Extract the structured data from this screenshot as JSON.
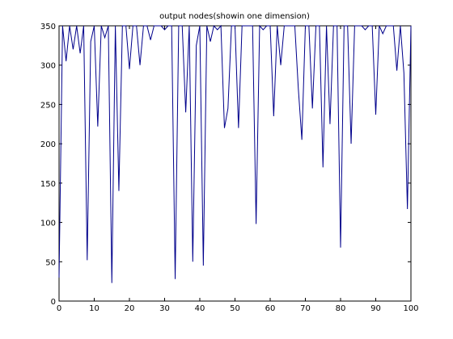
{
  "chart_data": {
    "type": "line",
    "title": "output nodes(showin one dimension)",
    "xlabel": "",
    "ylabel": "",
    "xlim": [
      0,
      100
    ],
    "ylim": [
      0,
      350
    ],
    "grid": false,
    "xticks": [
      "0",
      "10",
      "20",
      "30",
      "40",
      "50",
      "60",
      "70",
      "80",
      "90",
      "100"
    ],
    "yticks": [
      "0",
      "50",
      "100",
      "150",
      "200",
      "250",
      "300",
      "350"
    ],
    "line_color": "#00008B",
    "series": [
      {
        "x": [
          0,
          1,
          2,
          3,
          4,
          5,
          6,
          7,
          8,
          9,
          10,
          11,
          12,
          13,
          14,
          15,
          16,
          17,
          18,
          19,
          20,
          21,
          22,
          23,
          24,
          25,
          26,
          27,
          28,
          29,
          30,
          31,
          32,
          33,
          34,
          35,
          36,
          37,
          38,
          39,
          40,
          41,
          42,
          43,
          44,
          45,
          46,
          47,
          48,
          49,
          50,
          51,
          52,
          53,
          54,
          55,
          56,
          57,
          58,
          59,
          60,
          61,
          62,
          63,
          64,
          65,
          66,
          67,
          68,
          69,
          70,
          71,
          72,
          73,
          74,
          75,
          76,
          77,
          78,
          79,
          80,
          81,
          82,
          83,
          84,
          85,
          86,
          87,
          88,
          89,
          90,
          91,
          92,
          93,
          94,
          95,
          96,
          97,
          98,
          99,
          100
        ],
        "y": [
          30,
          350,
          305,
          350,
          320,
          350,
          315,
          350,
          52,
          330,
          350,
          222,
          350,
          335,
          350,
          23,
          350,
          140,
          350,
          350,
          295,
          350,
          350,
          300,
          350,
          350,
          332,
          350,
          350,
          350,
          345,
          350,
          350,
          28,
          350,
          350,
          240,
          350,
          50,
          325,
          350,
          45,
          350,
          330,
          350,
          345,
          350,
          220,
          245,
          350,
          350,
          220,
          350,
          350,
          350,
          350,
          98,
          350,
          345,
          350,
          350,
          235,
          350,
          300,
          350,
          350,
          350,
          350,
          270,
          205,
          350,
          350,
          245,
          350,
          350,
          170,
          350,
          225,
          350,
          350,
          68,
          350,
          350,
          200,
          350,
          350,
          350,
          345,
          350,
          350,
          237,
          350,
          340,
          350,
          350,
          350,
          293,
          350,
          290,
          117,
          350
        ]
      }
    ]
  }
}
